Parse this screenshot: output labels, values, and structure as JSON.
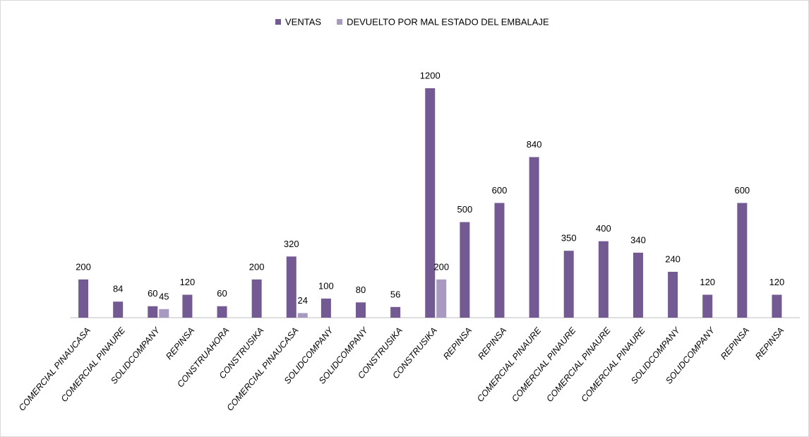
{
  "chart_data": {
    "type": "bar",
    "categories": [
      "COMERCIAL PINAUCASA",
      "COMERCIAL PINAURE",
      "SOLIDCOMPANY",
      "REPINSA",
      "CONSTRUAHORA",
      "CONSTRUSIKA",
      "COMERCIAL PINAUCASA",
      "SOLIDCOMPANY",
      "SOLIDCOMPANY",
      "CONSTRUSIKA",
      "CONSTRUSIKA",
      "REPINSA",
      "REPINSA",
      "COMERCIAL PINAURE",
      "COMERCIAL PINAURE",
      "COMERCIAL PINAURE",
      "COMERCIAL PINAURE",
      "SOLIDCOMPANY",
      "SOLIDCOMPANY",
      "REPINSA",
      "REPINSA"
    ],
    "series": [
      {
        "name": "VENTAS",
        "color": "#735a92",
        "values": [
          200,
          84,
          60,
          120,
          60,
          200,
          320,
          100,
          80,
          56,
          1200,
          500,
          600,
          840,
          350,
          400,
          340,
          240,
          120,
          600,
          120
        ]
      },
      {
        "name": "DEVUELTO POR MAL ESTADO DEL EMBALAJE",
        "color": "#a899c1",
        "values": [
          null,
          null,
          45,
          null,
          null,
          null,
          24,
          null,
          null,
          null,
          200,
          null,
          null,
          null,
          null,
          null,
          null,
          null,
          null,
          null,
          null
        ]
      }
    ],
    "legend": "top"
  }
}
